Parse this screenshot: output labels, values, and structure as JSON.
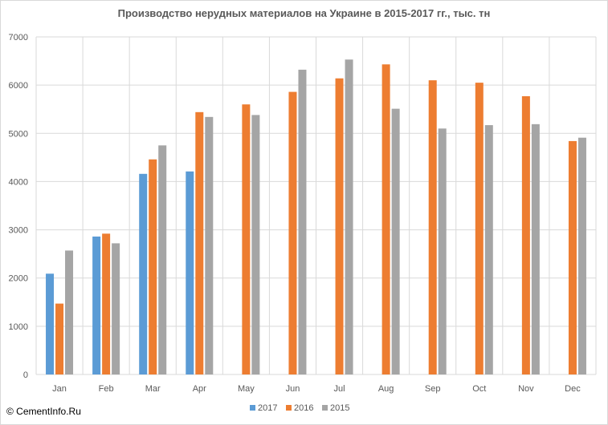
{
  "chart_data": {
    "type": "bar",
    "title": "Производство нерудных материалов на Украине  в 2015-2017  гг., тыс. тн",
    "xlabel": "",
    "ylabel": "",
    "ylim": [
      0,
      7000
    ],
    "yticks": [
      0,
      1000,
      2000,
      3000,
      4000,
      5000,
      6000,
      7000
    ],
    "grid": true,
    "legend": "bottom",
    "categories": [
      "Jan",
      "Feb",
      "Mar",
      "Apr",
      "May",
      "Jun",
      "Jul",
      "Aug",
      "Sep",
      "Oct",
      "Nov",
      "Dec"
    ],
    "series": [
      {
        "name": "2017",
        "color": "#5b9bd5",
        "values": [
          2090,
          2860,
          4160,
          4210,
          null,
          null,
          null,
          null,
          null,
          null,
          null,
          null
        ]
      },
      {
        "name": "2016",
        "color": "#ed7d31",
        "values": [
          1470,
          2920,
          4460,
          5440,
          5600,
          5860,
          6140,
          6430,
          6100,
          6050,
          5770,
          4840
        ]
      },
      {
        "name": "2015",
        "color": "#a5a5a5",
        "values": [
          2570,
          2720,
          4750,
          5340,
          5380,
          6320,
          6530,
          5510,
          5100,
          5170,
          5190,
          4910
        ]
      }
    ]
  },
  "watermark": "© CementInfo.Ru"
}
